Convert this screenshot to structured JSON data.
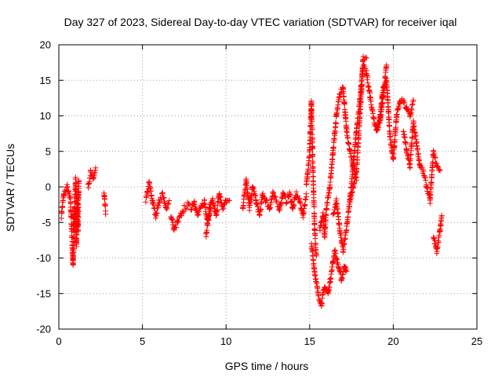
{
  "chart_data": {
    "type": "scatter",
    "title": "Day 327 of 2023, Sidereal Day-to-day VTEC variation (SDTVAR) for receiver iqal",
    "xlabel": "GPS time / hours",
    "ylabel": "SDTVAR / TECUs",
    "xlim": [
      0,
      25
    ],
    "ylim": [
      -20,
      20
    ],
    "xticks": [
      "0",
      "5",
      "10",
      "15",
      "20",
      "25"
    ],
    "yticks": [
      "20",
      "15",
      "10",
      "5",
      "0",
      "-5",
      "-10",
      "-15",
      "-20"
    ],
    "grid": true,
    "marker": "+",
    "series_color": "#ff0000",
    "segments": [
      {
        "x": [
          0.15,
          0.3,
          0.5,
          0.7,
          0.85,
          1.0,
          1.15,
          1.2
        ],
        "y": [
          -4,
          -1,
          0,
          -2,
          -11,
          1,
          -6,
          1
        ]
      },
      {
        "x": [
          0.85,
          0.95,
          1.05,
          1.15
        ],
        "y": [
          -6,
          -3,
          -8,
          -1
        ]
      },
      {
        "x": [
          1.75,
          1.9,
          2.05,
          2.2
        ],
        "y": [
          0,
          2,
          1,
          2.5
        ]
      },
      {
        "x": [
          2.7,
          2.8
        ],
        "y": [
          -1,
          -3.5
        ]
      },
      {
        "x": [
          5.2,
          5.4,
          5.6,
          5.8,
          6.0,
          6.2,
          6.4,
          6.6
        ],
        "y": [
          -2,
          0.5,
          -2,
          -4,
          -2,
          -1,
          -3,
          -2
        ]
      },
      {
        "x": [
          6.7,
          6.9,
          7.1,
          7.3,
          7.5,
          7.7,
          7.9,
          8.1,
          8.3,
          8.5,
          8.7,
          8.9,
          9.1
        ],
        "y": [
          -4,
          -6,
          -5,
          -4,
          -3,
          -2.5,
          -3,
          -2,
          -4,
          -3,
          -2,
          -5,
          -3
        ]
      },
      {
        "x": [
          8.8,
          9.0,
          9.2,
          9.4,
          9.6,
          9.8,
          10.0,
          10.2
        ],
        "y": [
          -7,
          -3,
          -2,
          -4,
          -1,
          -3,
          -2,
          -2
        ]
      },
      {
        "x": [
          11.0,
          11.2,
          11.4,
          11.6,
          11.8,
          12.0,
          12.2,
          12.4,
          12.6,
          12.8,
          13.0,
          13.2,
          13.4,
          13.6,
          13.8,
          14.0,
          14.2,
          14.4,
          14.6,
          14.8
        ],
        "y": [
          -3,
          1,
          -3,
          0,
          -2,
          -4,
          -1,
          -2,
          -3,
          -1,
          -2,
          -3,
          -1,
          -2,
          -1,
          -3,
          -1,
          -2,
          -4,
          -1
        ]
      },
      {
        "x": [
          14.8,
          15.0,
          15.1,
          15.2,
          15.3,
          15.4
        ],
        "y": [
          0,
          5,
          12,
          2,
          -6,
          -10
        ]
      },
      {
        "x": [
          15.1,
          15.3,
          15.5,
          15.7,
          15.9,
          16.1,
          16.3,
          16.5,
          16.7,
          16.9,
          17.1,
          17.2
        ],
        "y": [
          -8,
          -12,
          -15,
          -16.5,
          -14,
          -15,
          -12,
          -9,
          -11,
          -13,
          -11,
          -12
        ]
      },
      {
        "x": [
          15.6,
          15.8,
          15.9,
          16.0,
          16.2,
          16.4,
          16.6,
          16.8,
          17.0,
          17.2,
          17.4,
          17.6,
          17.8
        ],
        "y": [
          -6,
          -4,
          -7,
          -3,
          0,
          5,
          10,
          13,
          14,
          8,
          5,
          3,
          1
        ]
      },
      {
        "x": [
          16.4,
          16.6,
          16.8,
          17.0,
          17.2,
          17.4,
          17.6,
          17.8,
          18.0,
          18.2,
          18.4
        ],
        "y": [
          -4,
          -2,
          -6,
          -9,
          -6,
          -2,
          3,
          8,
          12,
          18,
          18.5
        ]
      },
      {
        "x": [
          17.4,
          17.6,
          17.8,
          18.0,
          18.2,
          18.4,
          18.6,
          18.8,
          19.0,
          19.2,
          19.4,
          19.6
        ],
        "y": [
          -2,
          0,
          2,
          10,
          17,
          16,
          13,
          10,
          8,
          9,
          13,
          17
        ]
      },
      {
        "x": [
          19.0,
          19.2,
          19.4,
          19.6,
          19.8,
          20.0,
          20.2,
          20.4,
          20.6,
          20.8,
          21.0,
          21.2
        ],
        "y": [
          8,
          10,
          14,
          15,
          7,
          4,
          10,
          12,
          12,
          11,
          10,
          12
        ]
      },
      {
        "x": [
          20.6,
          20.8,
          21.0,
          21.2,
          21.4,
          21.6,
          21.8,
          22.0,
          22.2,
          22.4,
          22.6,
          22.8
        ],
        "y": [
          8,
          5,
          3,
          9,
          6,
          3,
          2,
          0,
          -2,
          5,
          3,
          2
        ]
      },
      {
        "x": [
          22.4,
          22.6,
          22.8,
          22.9
        ],
        "y": [
          -7,
          -9,
          -6,
          -4
        ]
      }
    ]
  }
}
